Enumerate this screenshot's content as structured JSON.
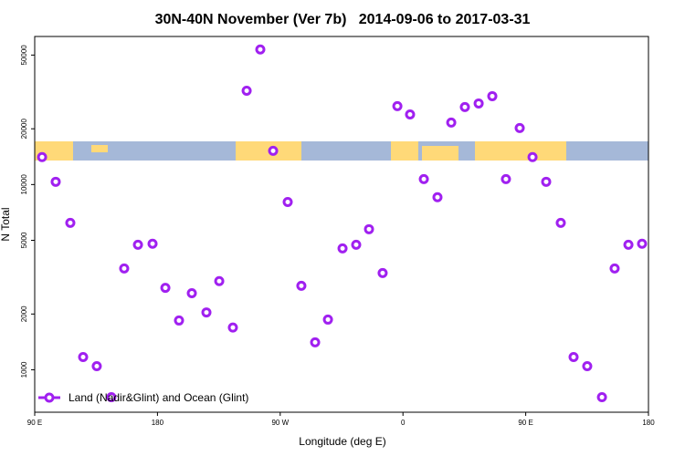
{
  "chart_data": {
    "type": "scatter",
    "title": "30N-40N November (Ver 7b)   2014-09-06 to 2017-03-31",
    "x_label": "Longitude (deg E)",
    "y_label": "N Total",
    "xlim": [
      90,
      540
    ],
    "xticks": [
      {
        "value": 90,
        "label": "90 E"
      },
      180,
      {
        "value": 270,
        "label": "90 W"
      },
      {
        "value": 360,
        "label": "0"
      },
      {
        "value": 450,
        "label": "90 E"
      },
      {
        "value": 540,
        "label": "180"
      }
    ],
    "ylim": [
      590,
      63000
    ],
    "log_y": true,
    "yticks": [
      1000,
      2000,
      5000,
      10000,
      20000,
      50000
    ],
    "legend": "bottom-left",
    "series": [
      {
        "name": "Land (Nadir&Glint) and Ocean (Glint)",
        "color": "#a020f0",
        "x": [
          95.4,
          105.4,
          116.1,
          125.5,
          135.5,
          146.2,
          155.6,
          165.7,
          176.4,
          185.8,
          195.8,
          205.2,
          215.9,
          225.3,
          235.3,
          245.4,
          255.4,
          264.8,
          275.5,
          285.5,
          295.6,
          305.0,
          315.7,
          325.7,
          335.1,
          345.1,
          355.9,
          365.2,
          375.3,
          385.3,
          395.4,
          405.4,
          415.5,
          425.5,
          435.5,
          445.6,
          455.0,
          465.0,
          475.7,
          485.1,
          495.1,
          505.9,
          515.2,
          525.3,
          535.3
        ],
        "values": [
          14060,
          10350,
          6210,
          1172,
          1046,
          711,
          3524,
          4730,
          4790,
          2770,
          1845,
          2590,
          2040,
          3010,
          1690,
          32100,
          53600,
          15200,
          8050,
          2840,
          1406,
          1866,
          4520,
          4730,
          5740,
          3330,
          26500,
          23900,
          10700,
          8540,
          21600,
          26200,
          27400,
          30000,
          10700,
          20200,
          14060,
          10350,
          6210,
          1172,
          1046,
          711,
          3524,
          4730,
          4790
        ]
      }
    ]
  }
}
